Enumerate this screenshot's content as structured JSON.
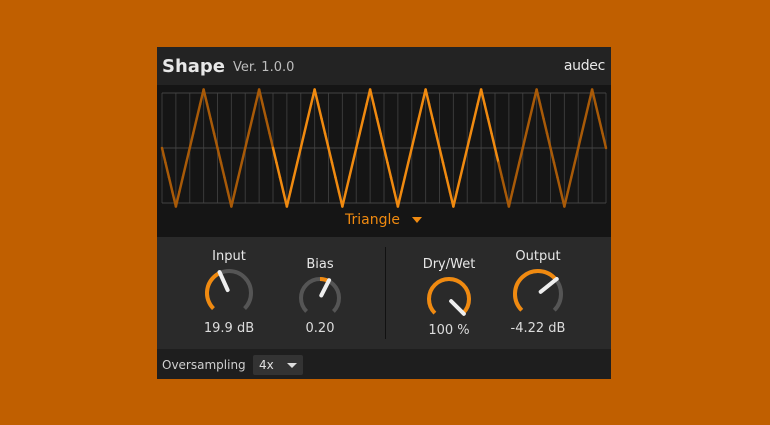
{
  "header": {
    "title": "Shape",
    "version": "Ver. 1.0.0",
    "brand": "audec"
  },
  "display": {
    "waveform": "Triangle",
    "cycles": 8,
    "shape_label": "Triangle",
    "accent": "#f08a10"
  },
  "knobs": [
    {
      "id": "input",
      "label": "Input",
      "value": "19.9 dB",
      "fraction": 0.41,
      "bipolar": false
    },
    {
      "id": "bias",
      "label": "Bias",
      "value": "0.20",
      "fraction": 0.6,
      "bipolar": true
    },
    {
      "id": "drywet",
      "label": "Dry/Wet",
      "value": "100 %",
      "fraction": 1.0,
      "bipolar": false
    },
    {
      "id": "output",
      "label": "Output",
      "value": "-4.22 dB",
      "fraction": 0.69,
      "bipolar": false
    }
  ],
  "footer": {
    "oversampling_label": "Oversampling",
    "oversampling_value": "4x"
  },
  "colors": {
    "background": "#c05f00",
    "accent": "#f08a10",
    "track": "#555555"
  }
}
